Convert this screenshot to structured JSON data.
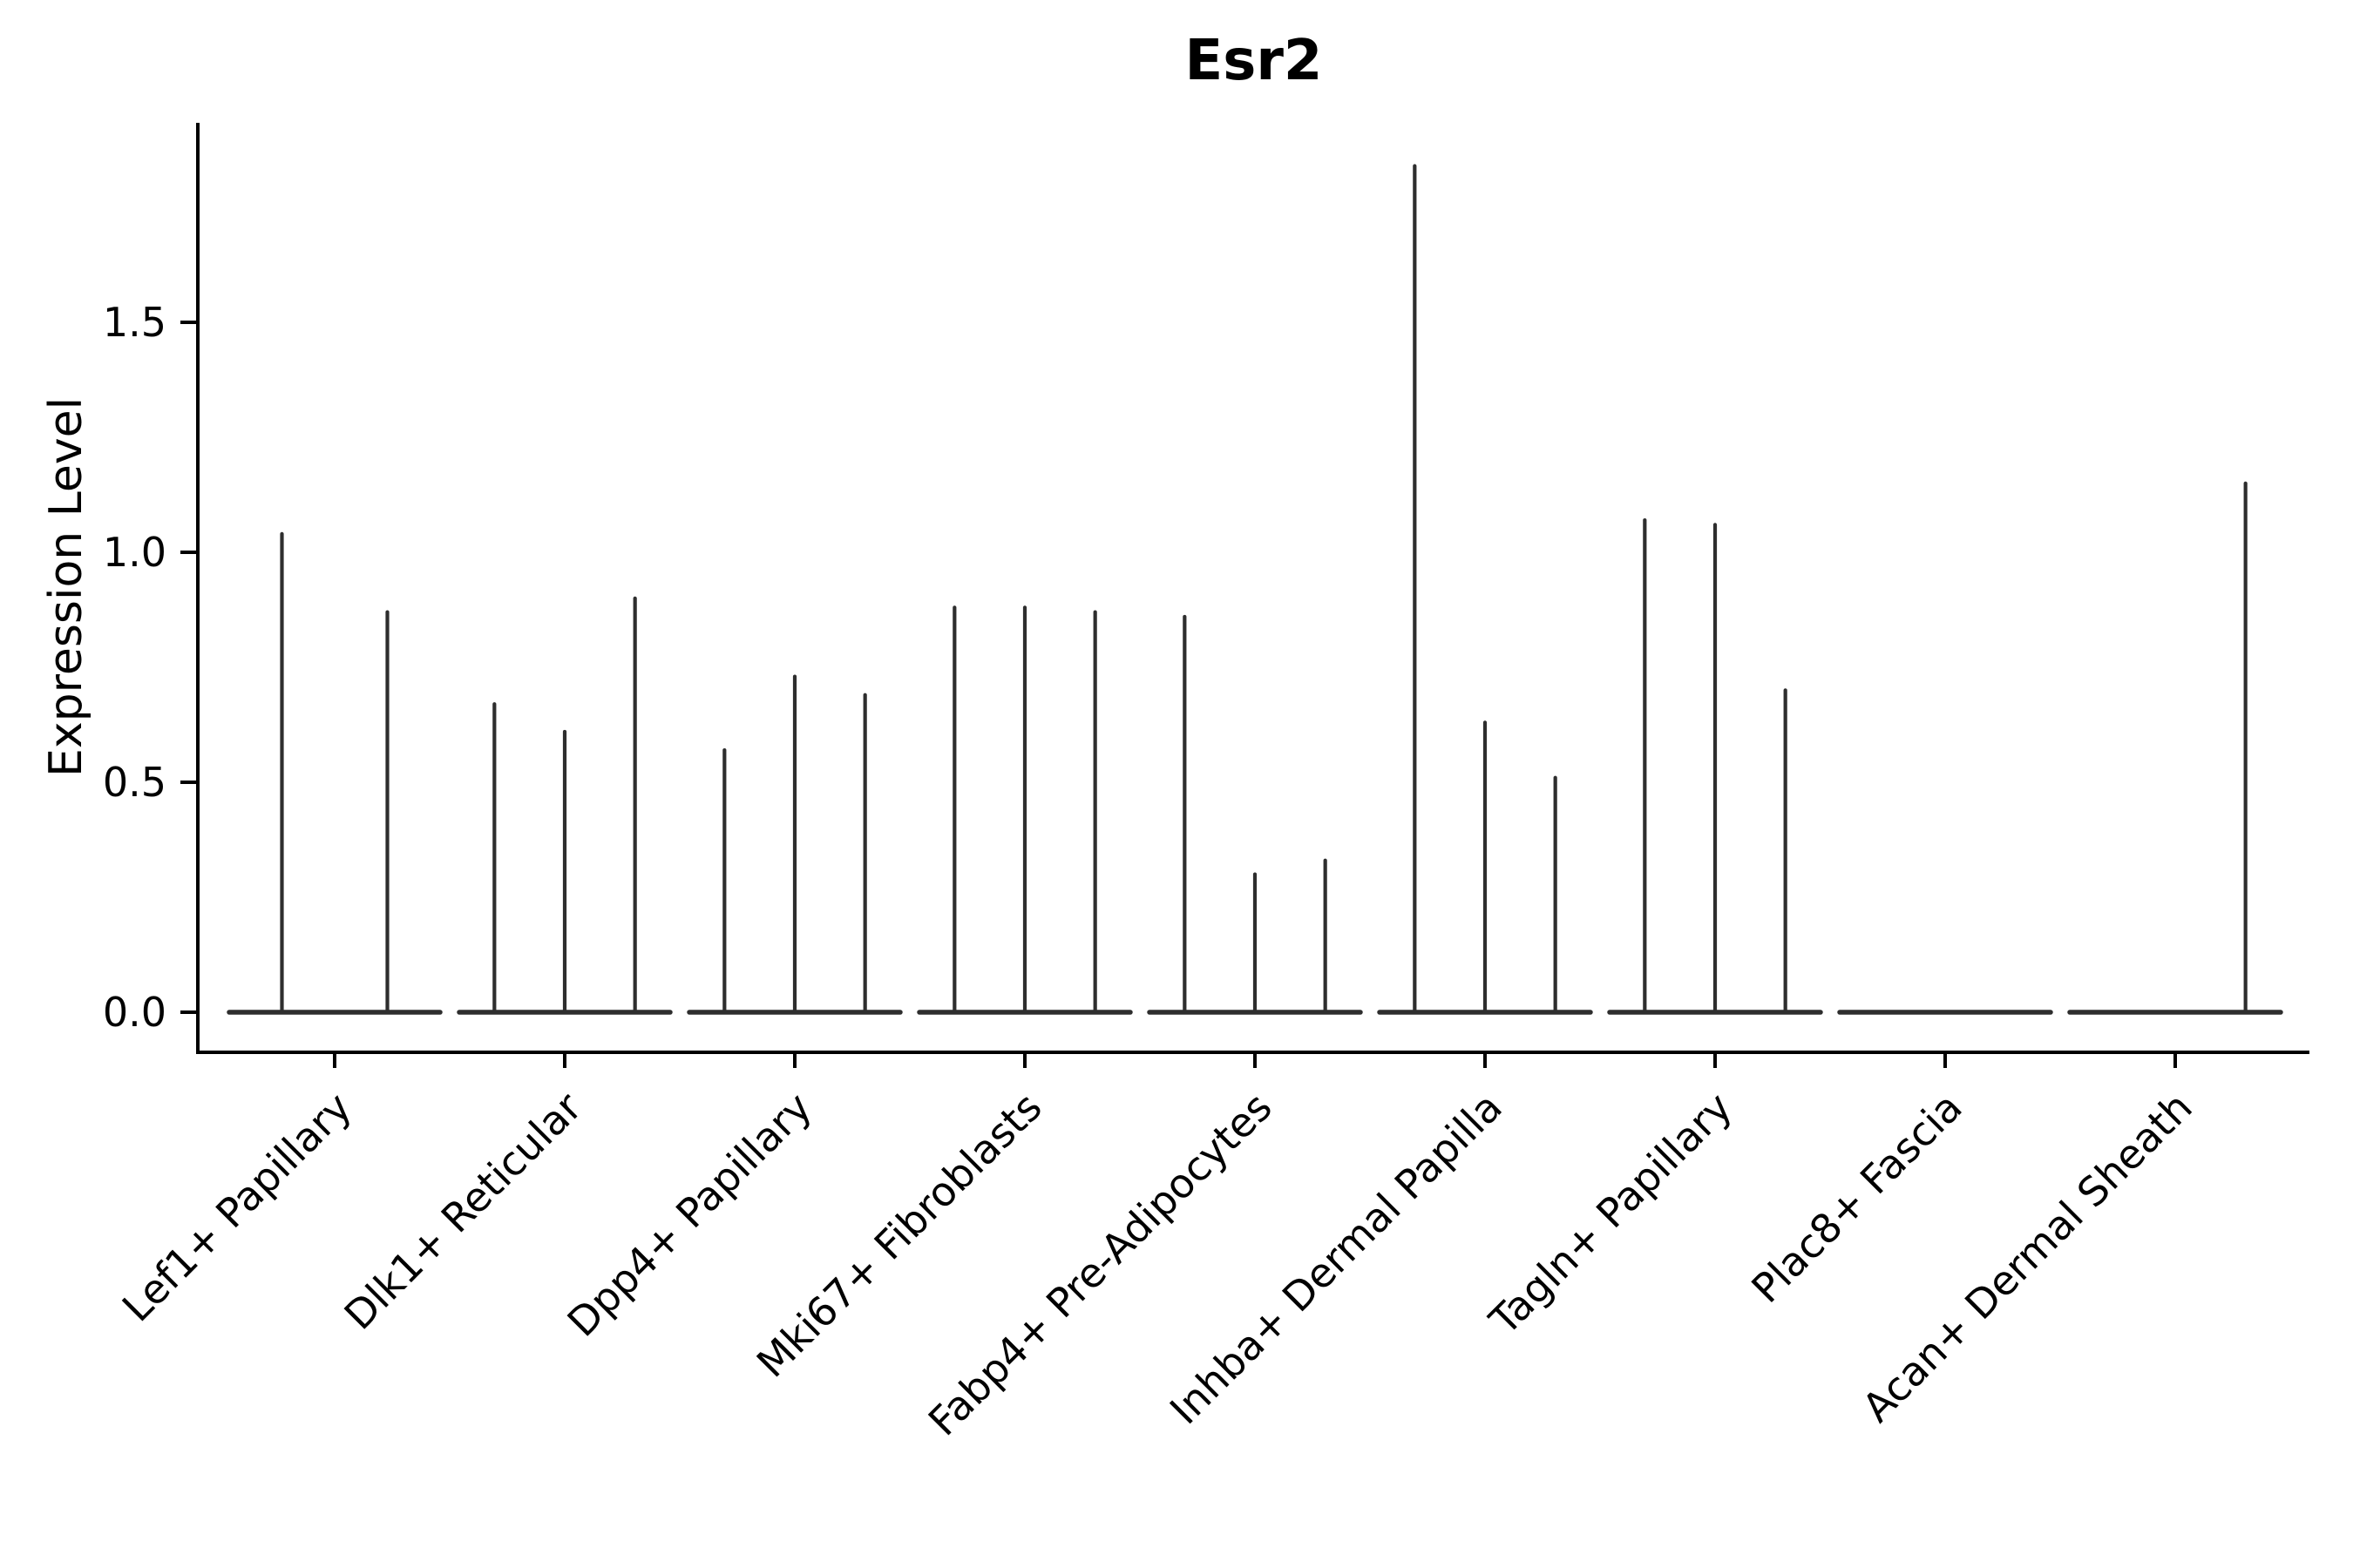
{
  "figure": {
    "title": "Esr2",
    "background": "#ffffff"
  },
  "chart_data": {
    "type": "violin",
    "title": "Esr2",
    "xlabel": "",
    "ylabel": "Expression Level",
    "yticks": [
      0.0,
      0.5,
      1.0,
      1.5
    ],
    "ylim": [
      -0.09,
      1.93
    ],
    "grid": false,
    "legend_position": "none",
    "categories": [
      "Lef1+ Papillary",
      "Dlk1+ Reticular",
      "Dpp4+ Papillary",
      "Mki67+ Fibroblasts",
      "Fabp4+ Pre-Adipocytes",
      "Inhba+ Dermal Papilla",
      "Tagln+ Papillary",
      "Plac8+ Fascia",
      "Acan+ Dermal Sheath"
    ],
    "violins": [
      {
        "category": "Lef1+ Papillary",
        "max_values": [
          1.04,
          0.87
        ]
      },
      {
        "category": "Dlk1+ Reticular",
        "max_values": [
          0.67,
          0.61,
          0.9
        ]
      },
      {
        "category": "Dpp4+ Papillary",
        "max_values": [
          0.57,
          0.73,
          0.69
        ]
      },
      {
        "category": "Mki67+ Fibroblasts",
        "max_values": [
          0.88,
          0.88,
          0.87
        ]
      },
      {
        "category": "Fabp4+ Pre-Adipocytes",
        "max_values": [
          0.86,
          0.3,
          0.33
        ]
      },
      {
        "category": "Inhba+ Dermal Papilla",
        "max_values": [
          1.84,
          0.63,
          0.51
        ]
      },
      {
        "category": "Tagln+ Papillary",
        "max_values": [
          1.07,
          1.06,
          0.7
        ]
      },
      {
        "category": "Plac8+ Fascia",
        "max_values": [
          0,
          0,
          0
        ]
      },
      {
        "category": "Acan+ Dermal Sheath",
        "max_values": [
          0,
          0,
          1.15
        ]
      }
    ],
    "colors": {
      "violin": "#2e2e2e",
      "axis": "#000000",
      "text": "#000000",
      "background": "#ffffff"
    }
  }
}
